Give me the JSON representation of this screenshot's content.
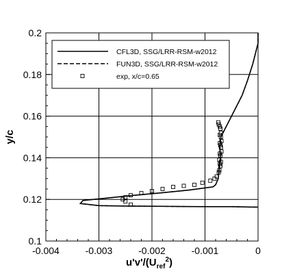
{
  "chart_data": {
    "type": "line",
    "xlabel": "u'v'/(U_ref^2)",
    "xlabel_parts": {
      "main": "u'v'/(U",
      "sub": "ref",
      "sup": "2",
      "close": ")"
    },
    "ylabel": "y/c",
    "xlim": [
      -0.004,
      0
    ],
    "ylim": [
      0.1,
      0.2
    ],
    "x_ticks": [
      -0.004,
      -0.003,
      -0.002,
      -0.001,
      0
    ],
    "x_tick_labels": [
      "-0.004",
      "-0.003",
      "-0.002",
      "-0.001",
      "0"
    ],
    "y_ticks": [
      0.1,
      0.12,
      0.14,
      0.16,
      0.18,
      0.2
    ],
    "y_tick_labels": [
      "0.1",
      "0.12",
      "0.14",
      "0.16",
      "0.18",
      "0.2"
    ],
    "grid": true,
    "legend_position": "top-left",
    "series": [
      {
        "name": "CFL3D, SSG/LRR-RSM-w2012",
        "style": "solid",
        "color": "#000000",
        "x": [
          0.0,
          0.0,
          -0.0001,
          -0.0002,
          -0.0003,
          -0.0004,
          -0.0005,
          -0.0006,
          -0.0007,
          -0.00072,
          -0.00071,
          -0.00073,
          -0.00075,
          -0.0008,
          -0.00085,
          -0.001,
          -0.0013,
          -0.0018,
          -0.0024,
          -0.0029,
          -0.0033,
          -0.00335,
          -0.003,
          -0.0025,
          -0.002,
          -0.0015,
          -0.001,
          -0.0005,
          -0.0001,
          0.0
        ],
        "y": [
          0.2,
          0.195,
          0.185,
          0.177,
          0.17,
          0.165,
          0.16,
          0.155,
          0.15,
          0.145,
          0.14,
          0.135,
          0.13,
          0.127,
          0.126,
          0.1255,
          0.1245,
          0.1232,
          0.1218,
          0.1205,
          0.1195,
          0.118,
          0.117,
          0.1168,
          0.1167,
          0.1166,
          0.1165,
          0.1165,
          0.1163,
          0.1163
        ]
      },
      {
        "name": "FUN3D, SSG/LRR-RSM-w2012",
        "style": "dashed",
        "color": "#000000",
        "x": [
          0.0,
          0.0,
          -0.0001,
          -0.0002,
          -0.0003,
          -0.0004,
          -0.0005,
          -0.0006,
          -0.0007,
          -0.00072,
          -0.00071,
          -0.00073,
          -0.00075,
          -0.0008,
          -0.00085,
          -0.001,
          -0.0013,
          -0.0018,
          -0.0024,
          -0.0029,
          -0.0033,
          -0.00335,
          -0.003,
          -0.0025,
          -0.002,
          -0.0015,
          -0.001,
          -0.0005,
          -0.0001,
          0.0
        ],
        "y": [
          0.2,
          0.195,
          0.185,
          0.177,
          0.17,
          0.165,
          0.16,
          0.155,
          0.15,
          0.145,
          0.14,
          0.135,
          0.13,
          0.127,
          0.126,
          0.1255,
          0.1245,
          0.1232,
          0.1218,
          0.1205,
          0.1195,
          0.118,
          0.117,
          0.1168,
          0.1167,
          0.1166,
          0.1165,
          0.1165,
          0.1163,
          0.1163
        ]
      },
      {
        "name": "exp, x/c=0.65",
        "style": "markers",
        "marker": "square",
        "color": "#000000",
        "x": [
          -0.00075,
          -0.00074,
          -0.00072,
          -0.00071,
          -0.0007,
          -0.00072,
          -0.0007,
          -0.00069,
          -0.00072,
          -0.00071,
          -0.0007,
          -0.00069,
          -0.00072,
          -0.00071,
          -0.00073,
          -0.0007,
          -0.00072,
          -0.00071,
          -0.00073,
          -0.00074,
          -0.00078,
          -0.00082,
          -0.0009,
          -0.00105,
          -0.0012,
          -0.0014,
          -0.0016,
          -0.0018,
          -0.002,
          -0.0022,
          -0.0024,
          -0.0025,
          -0.00255,
          -0.0025,
          -0.0024
        ],
        "y": [
          0.157,
          0.156,
          0.155,
          0.154,
          0.152,
          0.151,
          0.15,
          0.148,
          0.147,
          0.146,
          0.145,
          0.143,
          0.142,
          0.141,
          0.139,
          0.138,
          0.137,
          0.136,
          0.134,
          0.133,
          0.131,
          0.13,
          0.129,
          0.128,
          0.127,
          0.1265,
          0.126,
          0.125,
          0.124,
          0.123,
          0.122,
          0.121,
          0.12,
          0.119,
          0.1175
        ]
      }
    ]
  }
}
